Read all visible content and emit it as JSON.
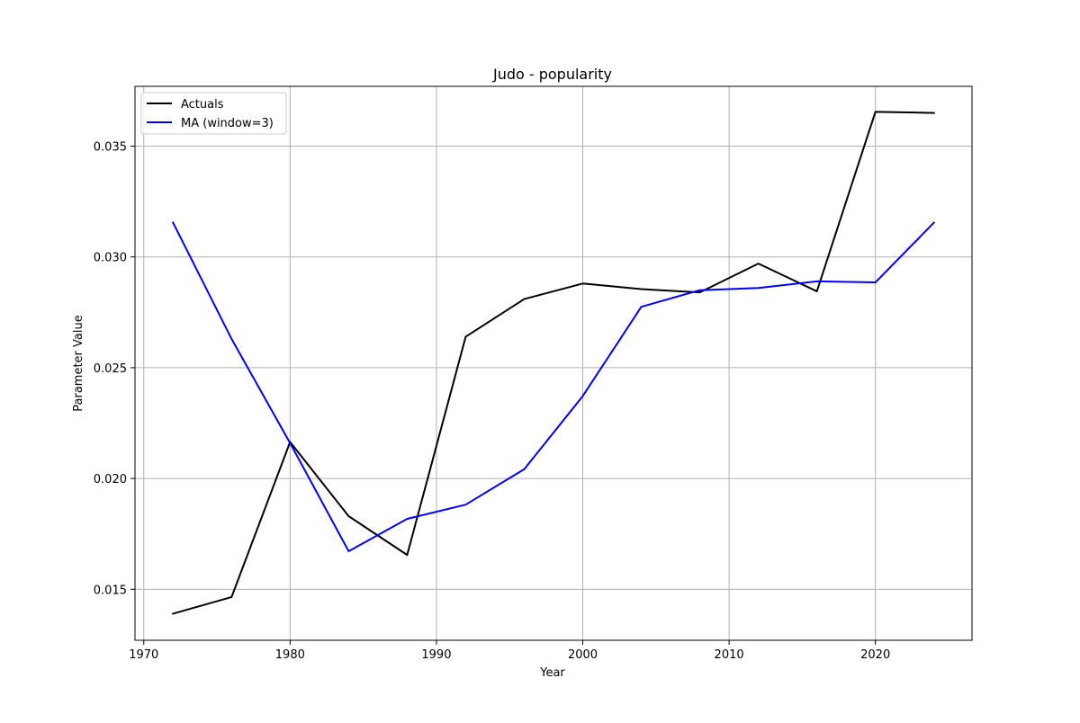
{
  "chart_data": {
    "type": "line",
    "title": "Judo - popularity",
    "xlabel": "Year",
    "ylabel": "Parameter Value",
    "xlim": [
      1969.4,
      2026.6
    ],
    "ylim": [
      0.0127,
      0.0377
    ],
    "xticks": [
      1970,
      1980,
      1990,
      2000,
      2010,
      2020
    ],
    "xtick_labels": [
      "1970",
      "1980",
      "1990",
      "2000",
      "2010",
      "2020"
    ],
    "yticks": [
      0.015,
      0.02,
      0.025,
      0.03,
      0.035
    ],
    "ytick_labels": [
      "0.015",
      "0.020",
      "0.025",
      "0.030",
      "0.035"
    ],
    "grid": true,
    "legend_position": "upper-left",
    "series": [
      {
        "name": "Actuals",
        "color": "#000000",
        "x": [
          1972,
          1976,
          1980,
          1984,
          1988,
          1992,
          1996,
          2000,
          2004,
          2008,
          2012,
          2016,
          2020,
          2024
        ],
        "y": [
          0.0139,
          0.01465,
          0.02165,
          0.0183,
          0.01655,
          0.0264,
          0.0281,
          0.0288,
          0.02855,
          0.0284,
          0.0297,
          0.02845,
          0.03655,
          0.0365
        ]
      },
      {
        "name": "MA (window=3)",
        "color": "#0000ff",
        "x": [
          1972,
          1976,
          1980,
          1984,
          1988,
          1992,
          1996,
          2000,
          2004,
          2008,
          2012,
          2016,
          2020,
          2024
        ],
        "y": [
          0.03155,
          0.0263,
          0.0216,
          0.01672,
          0.01818,
          0.01882,
          0.02042,
          0.02372,
          0.02775,
          0.0285,
          0.0286,
          0.0289,
          0.02885,
          0.03155
        ]
      }
    ]
  }
}
